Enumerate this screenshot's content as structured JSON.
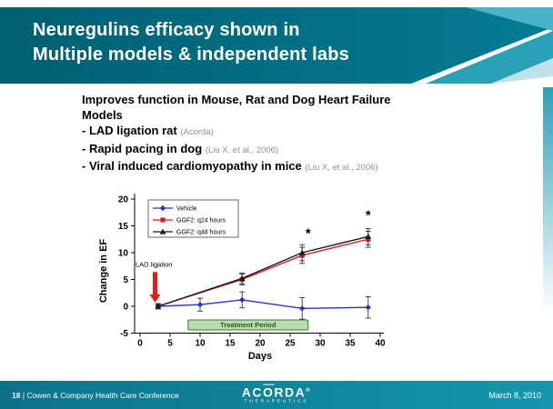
{
  "slide": {
    "title_line1": "Neuregulins efficacy shown in",
    "title_line2": "Multiple models & independent labs",
    "heading_line1": "Improves function in Mouse, Rat and Dog Heart Failure",
    "heading_line2": "Models",
    "bullets": [
      {
        "text": "- LAD ligation rat",
        "citation": "(Acorda)"
      },
      {
        "text": "- Rapid pacing in dog",
        "citation": "(Liu X, et al., 2006)"
      },
      {
        "text": "- Viral induced cardiomyopathy in mice",
        "citation": "(Liu X, et al., 2006)"
      }
    ]
  },
  "footer": {
    "page_number": "18",
    "separator": "|",
    "conference": "Cowen & Company Health Care Conference",
    "logo_pre": "AC",
    "logo_o": "O",
    "logo_post": "RDA",
    "logo_reg": "®",
    "logo_sub": "THERAPEUTICS",
    "date": "March 8, 2010"
  },
  "colors": {
    "header_teal_dark": "#015f72",
    "header_teal_mid": "#2ba1b7",
    "footer_teal": "#0c7389",
    "arrow_red": "#e11c1c",
    "treatment_green_fill": "#b9dcae",
    "treatment_green_border": "#3f7d2c"
  },
  "chart_data": {
    "type": "line",
    "title": "",
    "xlabel": "Days",
    "ylabel": "Change in EF",
    "xlim": [
      0,
      40
    ],
    "ylim": [
      -5,
      20
    ],
    "xticks": [
      0,
      5,
      10,
      15,
      20,
      25,
      30,
      35,
      40
    ],
    "yticks": [
      -5,
      0,
      5,
      10,
      15,
      20
    ],
    "grid": false,
    "legend_position": "upper-left",
    "series": [
      {
        "name": "Vehicle",
        "color": "#2a35b8",
        "marker": "diamond",
        "x": [
          3,
          10,
          17,
          27,
          38
        ],
        "y": [
          0,
          0.3,
          1.2,
          -0.4,
          -0.2
        ],
        "yerr": [
          0.5,
          1.2,
          1.5,
          2,
          2
        ]
      },
      {
        "name": "GGF2: q24 hours",
        "color": "#d21f1f",
        "marker": "square",
        "x": [
          3,
          17,
          27,
          38
        ],
        "y": [
          0,
          5,
          9.5,
          12.5
        ],
        "yerr": [
          0.4,
          1,
          1.5,
          1.5
        ]
      },
      {
        "name": "GGF2: q48 hours",
        "color": "#1a1a1a",
        "marker": "triangle",
        "x": [
          3,
          17,
          27,
          38
        ],
        "y": [
          0,
          5.2,
          10,
          13
        ],
        "yerr": [
          0.4,
          1,
          1.5,
          1.5
        ]
      }
    ],
    "annotations": {
      "lad_label": "LAD ligation",
      "lad_arrow_x": 2.5,
      "treatment_label": "Treatment Period",
      "treatment_start": 8,
      "treatment_end": 28,
      "significance": [
        {
          "x": 28,
          "y": 12.8,
          "symbol": "*"
        },
        {
          "x": 38,
          "y": 16.2,
          "symbol": "*"
        }
      ]
    }
  }
}
